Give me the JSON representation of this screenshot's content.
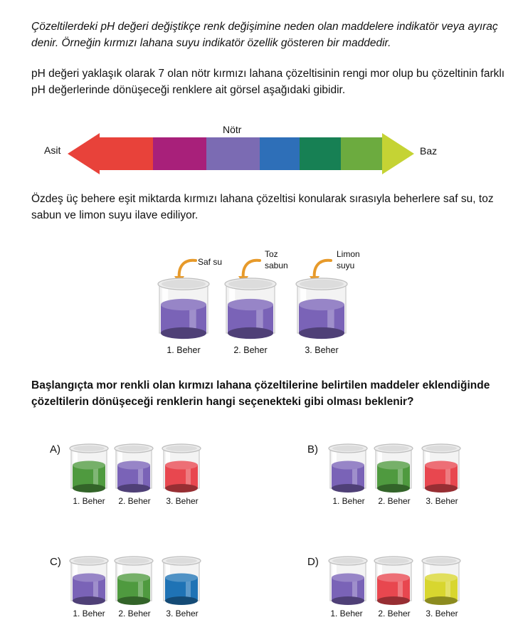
{
  "intro": "Çözeltilerdeki pH değeri değiştikçe renk değişimine neden olan maddelere indikatör veya ayıraç denir. Örneğin kırmızı lahana suyu indikatör özellik gösteren bir maddedir.",
  "description": "pH değeri yaklaşık olarak 7 olan nötr kırmızı lahana çözeltisinin rengi mor olup bu çözeltinin farklı pH değerlerinde dönüşeceği renklere ait görsel aşağıdaki gibidir.",
  "scale": {
    "left_label": "Asit",
    "middle_label": "Nötr",
    "right_label": "Baz",
    "colors": [
      "#e8423a",
      "#a8207a",
      "#7b6bb3",
      "#2e6fb8",
      "#178054",
      "#6cab3f",
      "#c5d334"
    ]
  },
  "setup": "Özdeş üç behere eşit miktarda kırmızı lahana çözeltisi konularak sırasıyla beherlere saf su, toz sabun ve limon suyu ilave ediliyor.",
  "beakers": [
    {
      "label": "1. Beher",
      "added_line1": "Saf su",
      "added_line2": "",
      "color": "#7a63b7"
    },
    {
      "label": "2. Beher",
      "added_line1": "Toz",
      "added_line2": "sabun",
      "color": "#7a63b7"
    },
    {
      "label": "3. Beher",
      "added_line1": "Limon",
      "added_line2": "suyu",
      "color": "#7a63b7"
    }
  ],
  "question": "Başlangıçta mor renkli olan kırmızı lahana çözeltilerine belirtilen maddeler eklendiğinde çözeltilerin dönüşeceği renklerin hangi seçenekteki gibi olması beklenir?",
  "options": [
    {
      "letter": "A)",
      "labels": [
        "1. Beher",
        "2. Beher",
        "3. Beher"
      ],
      "colors": [
        "#4f9a3f",
        "#7a63b7",
        "#e8474f"
      ]
    },
    {
      "letter": "B)",
      "labels": [
        "1. Beher",
        "2. Beher",
        "3. Beher"
      ],
      "colors": [
        "#7a63b7",
        "#4f9a3f",
        "#e8474f"
      ]
    },
    {
      "letter": "C)",
      "labels": [
        "1. Beher",
        "2. Beher",
        "3. Beher"
      ],
      "colors": [
        "#7a63b7",
        "#4f9a3f",
        "#1f73b5"
      ]
    },
    {
      "letter": "D)",
      "labels": [
        "1. Beher",
        "2. Beher",
        "3. Beher"
      ],
      "colors": [
        "#7a63b7",
        "#e8474f",
        "#d8d62f"
      ]
    }
  ]
}
